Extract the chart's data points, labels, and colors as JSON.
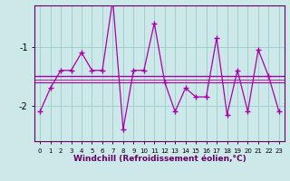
{
  "x": [
    0,
    1,
    2,
    3,
    4,
    5,
    6,
    7,
    8,
    9,
    10,
    11,
    12,
    13,
    14,
    15,
    16,
    17,
    18,
    19,
    20,
    21,
    22,
    23
  ],
  "windchill": [
    -2.1,
    -1.7,
    -1.4,
    -1.4,
    -1.1,
    -1.4,
    -1.4,
    -0.2,
    -2.4,
    -1.4,
    -1.4,
    -0.6,
    -1.6,
    -2.1,
    -1.7,
    -1.85,
    -1.85,
    -0.85,
    -2.15,
    -1.4,
    -2.1,
    -1.05,
    -1.5,
    -2.1
  ],
  "ref_line1": -1.5,
  "ref_line2": -1.6,
  "ref_line3": -1.55,
  "ylim": [
    -2.6,
    -0.3
  ],
  "yticks": [
    -2,
    -1
  ],
  "xlim": [
    -0.5,
    23.5
  ],
  "bg_color": "#cce8e8",
  "line_color": "#aa00aa",
  "grid_color": "#99cccc",
  "axis_color": "#660066",
  "tick_color": "#000000",
  "xlabel": "Windchill (Refroidissement éolien,°C)",
  "label_fontsize": 6.5
}
